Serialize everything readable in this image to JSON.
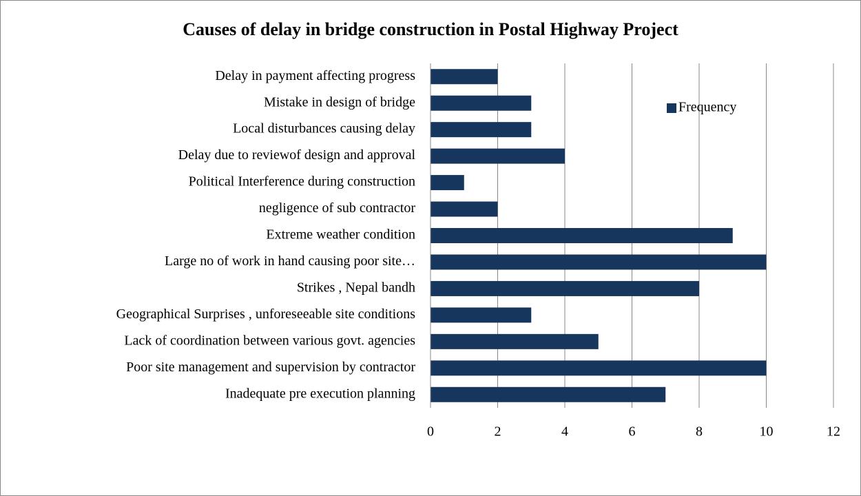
{
  "chart_data": {
    "type": "bar",
    "orientation": "horizontal",
    "title": "Causes of delay in bridge construction in Postal Highway Project",
    "categories": [
      "Delay in payment affecting progress",
      "Mistake in design of bridge",
      "Local disturbances causing delay",
      "Delay due to  reviewof design and approval",
      "Political Interference during construction",
      "negligence of sub contractor",
      "Extreme weather condition",
      "Large no of work in hand causing poor site…",
      "Strikes , Nepal bandh",
      "Geographical Surprises , unforeseeable site conditions",
      "Lack of coordination between various govt. agencies",
      "Poor site management and supervision by contractor",
      "Inadequate pre execution planning"
    ],
    "series": [
      {
        "name": "Frequency",
        "color": "#17365d",
        "values": [
          2,
          3,
          3,
          4,
          1,
          2,
          9,
          10,
          8,
          3,
          5,
          10,
          7
        ]
      }
    ],
    "xlim": [
      0,
      12
    ],
    "xticks": [
      0,
      2,
      4,
      6,
      8,
      10,
      12
    ],
    "grid": true,
    "legend": "top-right"
  }
}
